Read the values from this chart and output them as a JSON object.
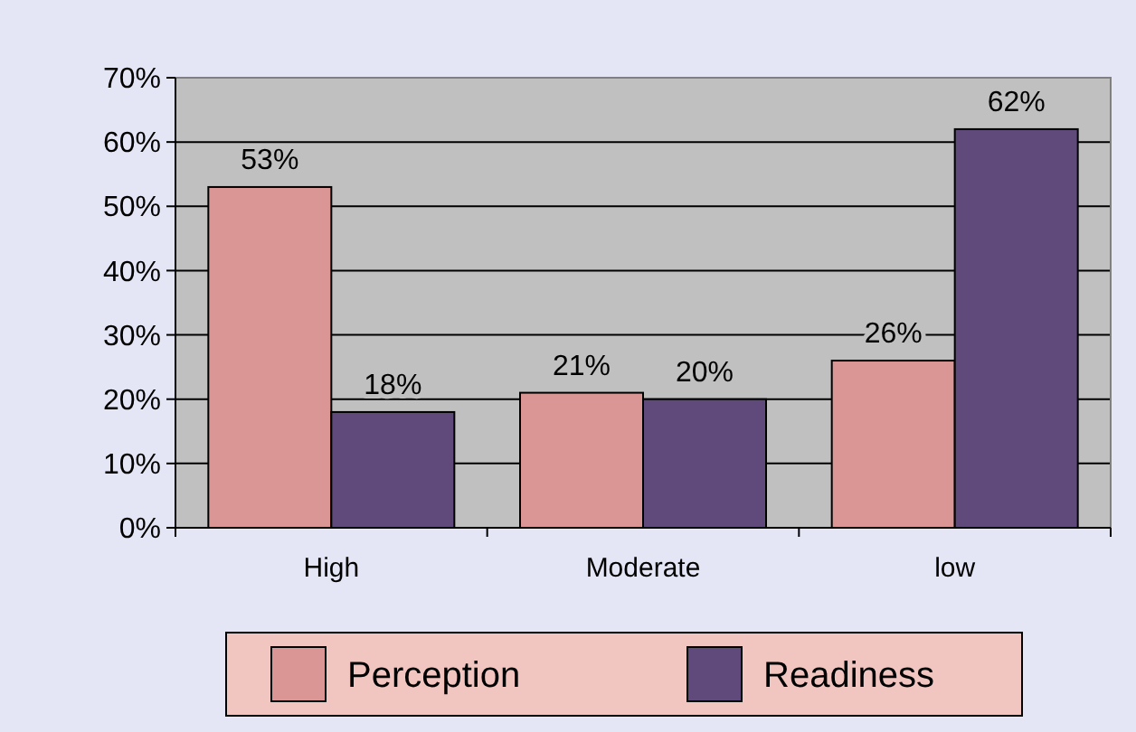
{
  "chart_data": {
    "type": "bar",
    "categories": [
      "High",
      "Moderate",
      "low"
    ],
    "series": [
      {
        "name": "Perception",
        "color": "#d99694",
        "values": [
          53,
          21,
          26
        ],
        "value_labels": [
          "53%",
          "21%",
          "26%"
        ]
      },
      {
        "name": "Readiness",
        "color": "#604a7b",
        "values": [
          18,
          20,
          62
        ],
        "value_labels": [
          "18%",
          "20%",
          "62%"
        ]
      }
    ],
    "ylim": [
      0,
      70
    ],
    "yticks": [
      {
        "value": 0,
        "label": "0%"
      },
      {
        "value": 10,
        "label": "10%"
      },
      {
        "value": 20,
        "label": "20%"
      },
      {
        "value": 30,
        "label": "30%"
      },
      {
        "value": 40,
        "label": "40%"
      },
      {
        "value": 50,
        "label": "50%"
      },
      {
        "value": 60,
        "label": "60%"
      },
      {
        "value": 70,
        "label": "70%"
      }
    ],
    "grid": "y",
    "legend": "bottom"
  }
}
